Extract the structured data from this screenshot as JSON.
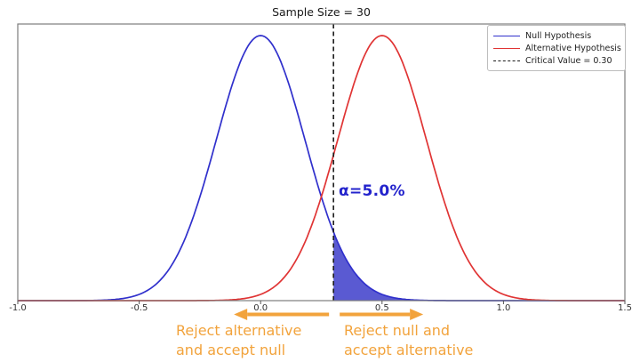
{
  "chart_data": {
    "type": "line",
    "title": "Sample Size = 30",
    "x_range": [
      -1.0,
      1.5
    ],
    "xticks": [
      -1.0,
      -0.5,
      0.0,
      0.5,
      1.0,
      1.5
    ],
    "xtick_labels": [
      "-1.0",
      "-0.5",
      "0.0",
      "0.5",
      "1.0",
      "1.5"
    ],
    "grid": false,
    "series": [
      {
        "name": "Null Hypothesis",
        "curve": "normal_pdf",
        "mean": 0.0,
        "std": 0.1826,
        "color": "#3030cc"
      },
      {
        "name": "Alternative Hypothesis",
        "curve": "normal_pdf",
        "mean": 0.5,
        "std": 0.1826,
        "color": "#e03434"
      }
    ],
    "critical_value": 0.3,
    "critical_line": {
      "color": "#1a1a1a",
      "style": "dashed"
    },
    "shaded_region": {
      "series_index": 0,
      "from_x": 0.3,
      "to_x": 1.5,
      "fill": "#5a5ad2"
    },
    "alpha_annotation": {
      "text": "α=5.0%",
      "color": "#2323cc",
      "x": 0.32
    },
    "legend": {
      "position": "upper right",
      "entries": [
        {
          "label": "Null Hypothesis",
          "color": "#3030cc",
          "dash": false
        },
        {
          "label": "Alternative Hypothesis",
          "color": "#e03434",
          "dash": false
        },
        {
          "label": "Critical Value = 0.30",
          "color": "#1a1a1a",
          "dash": true
        }
      ]
    },
    "decision_annotations": {
      "color": "#f2a33c",
      "left_caption": [
        "Reject alternative",
        "and accept null"
      ],
      "right_caption": [
        "Reject null and",
        "accept alternative"
      ],
      "left_arrow_direction": "left",
      "right_arrow_direction": "right"
    }
  }
}
